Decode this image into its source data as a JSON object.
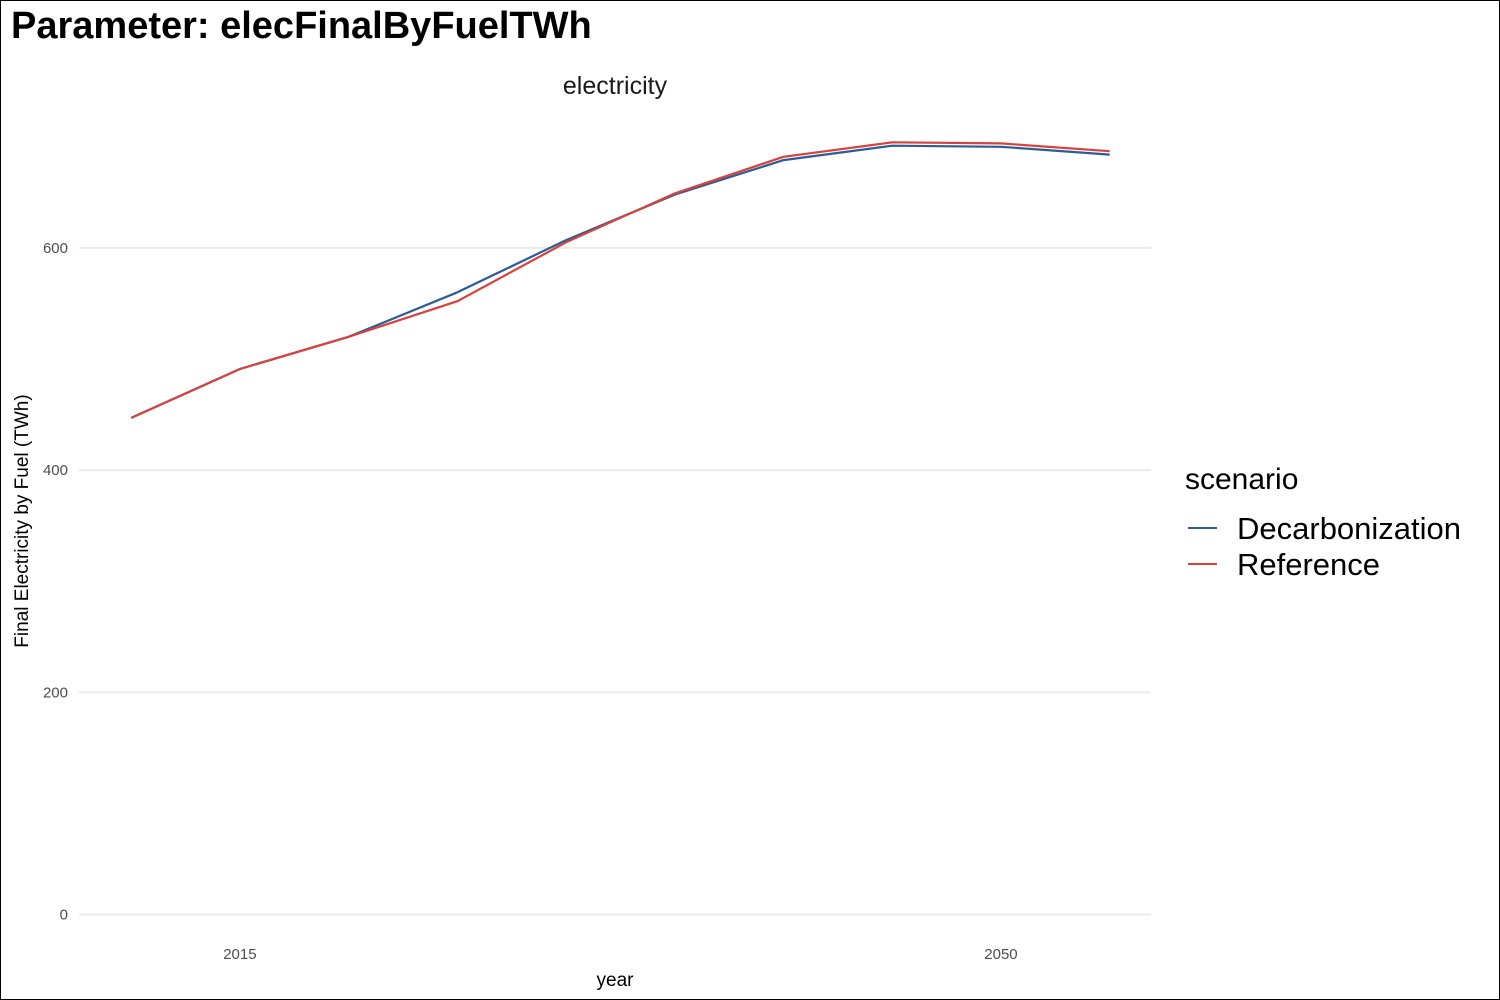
{
  "page": {
    "title": "Parameter: elecFinalByFuelTWh"
  },
  "chart_data": {
    "type": "line",
    "title": "electricity",
    "xlabel": "year",
    "ylabel": "Final Electricity by Fuel (TWh)",
    "x": [
      2010,
      2015,
      2020,
      2025,
      2030,
      2035,
      2040,
      2045,
      2050,
      2055
    ],
    "x_ticks": [
      2015,
      2050
    ],
    "x_tick_labels": [
      "2015",
      "2050"
    ],
    "xlim": [
      2007.6,
      2056.9
    ],
    "y_ticks": [
      0,
      200,
      400,
      600
    ],
    "y_tick_labels": [
      "0",
      "200",
      "400",
      "600"
    ],
    "ylim": [
      -4,
      716
    ],
    "grid": true,
    "legend": {
      "title": "scenario",
      "placement": "right"
    },
    "series": [
      {
        "name": "Decarbonization",
        "color": "#2c5c97",
        "values": [
          447,
          491,
          520,
          560,
          607,
          648,
          679,
          692,
          691,
          684
        ]
      },
      {
        "name": "Reference",
        "color": "#d9413c",
        "values": [
          447,
          491,
          520,
          552,
          605,
          649,
          682,
          695,
          694,
          687
        ]
      }
    ]
  }
}
